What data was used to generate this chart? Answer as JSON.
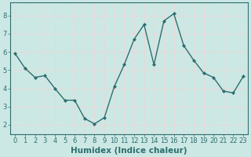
{
  "x": [
    0,
    1,
    2,
    3,
    4,
    5,
    6,
    7,
    8,
    9,
    10,
    11,
    12,
    13,
    14,
    15,
    16,
    17,
    18,
    19,
    20,
    21,
    22,
    23
  ],
  "y": [
    5.9,
    5.1,
    4.6,
    4.7,
    4.0,
    3.35,
    3.35,
    2.35,
    2.05,
    2.4,
    4.1,
    5.3,
    6.7,
    7.5,
    5.3,
    7.7,
    8.1,
    6.35,
    5.55,
    4.85,
    4.6,
    3.85,
    3.75,
    4.65
  ],
  "line_color": "#2d6e6e",
  "marker": "D",
  "marker_size": 2.0,
  "bg_color": "#cce8e4",
  "grid_color": "#e8d8d8",
  "xlabel": "Humidex (Indice chaleur)",
  "ylim": [
    1.5,
    8.7
  ],
  "xlim": [
    -0.5,
    23.5
  ],
  "yticks": [
    2,
    3,
    4,
    5,
    6,
    7,
    8
  ],
  "xticks": [
    0,
    1,
    2,
    3,
    4,
    5,
    6,
    7,
    8,
    9,
    10,
    11,
    12,
    13,
    14,
    15,
    16,
    17,
    18,
    19,
    20,
    21,
    22,
    23
  ],
  "tick_label_color": "#2d6e6e",
  "xlabel_color": "#2d6e6e",
  "xlabel_fontsize": 7.5,
  "tick_fontsize": 6.0,
  "spine_color": "#2d6e6e",
  "linewidth": 1.0
}
